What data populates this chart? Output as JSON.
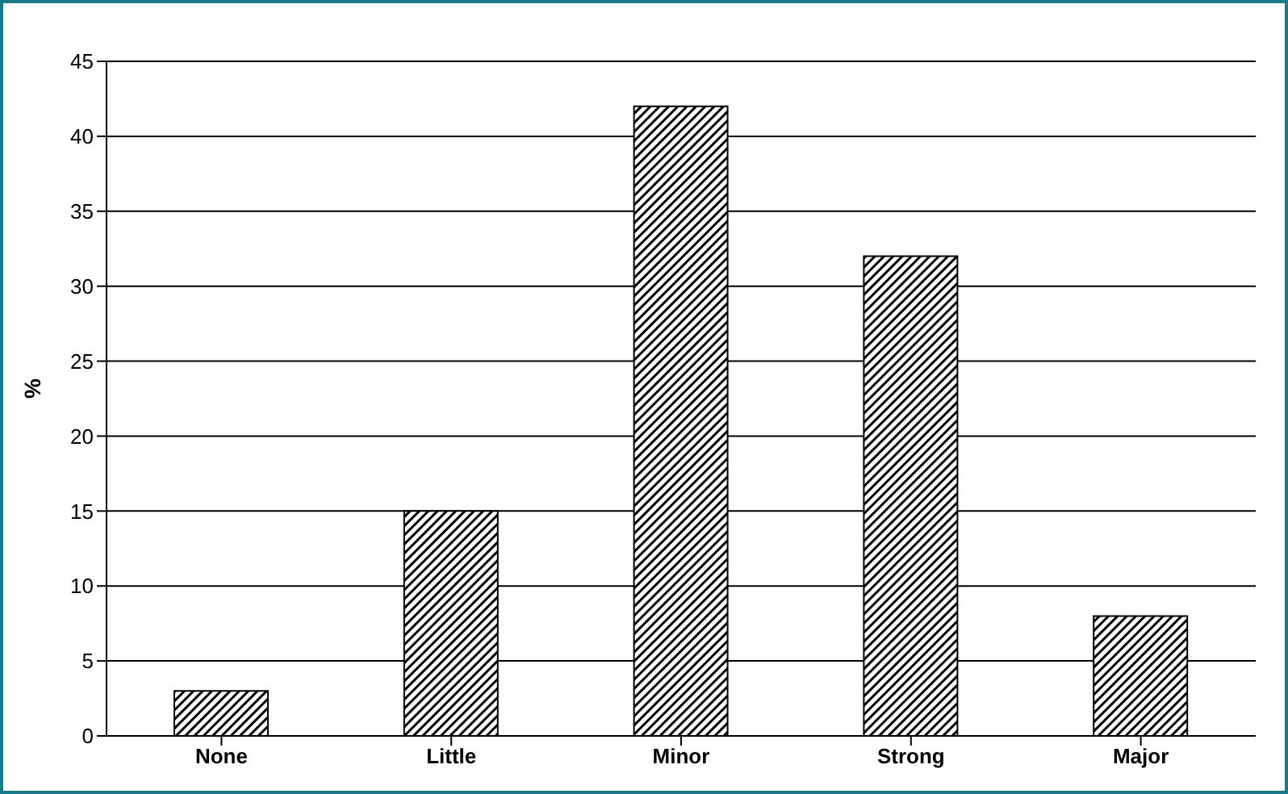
{
  "chart_data": {
    "type": "bar",
    "ylabel": "%",
    "categories": [
      "None",
      "Little",
      "Minor",
      "Strong",
      "Major"
    ],
    "values": [
      3,
      15,
      42,
      32,
      8
    ],
    "color": "#000000",
    "ylim": [
      0,
      45
    ],
    "yticks": [
      0,
      5,
      10,
      15,
      20,
      25,
      30,
      35,
      40,
      45
    ],
    "grid": "y"
  }
}
